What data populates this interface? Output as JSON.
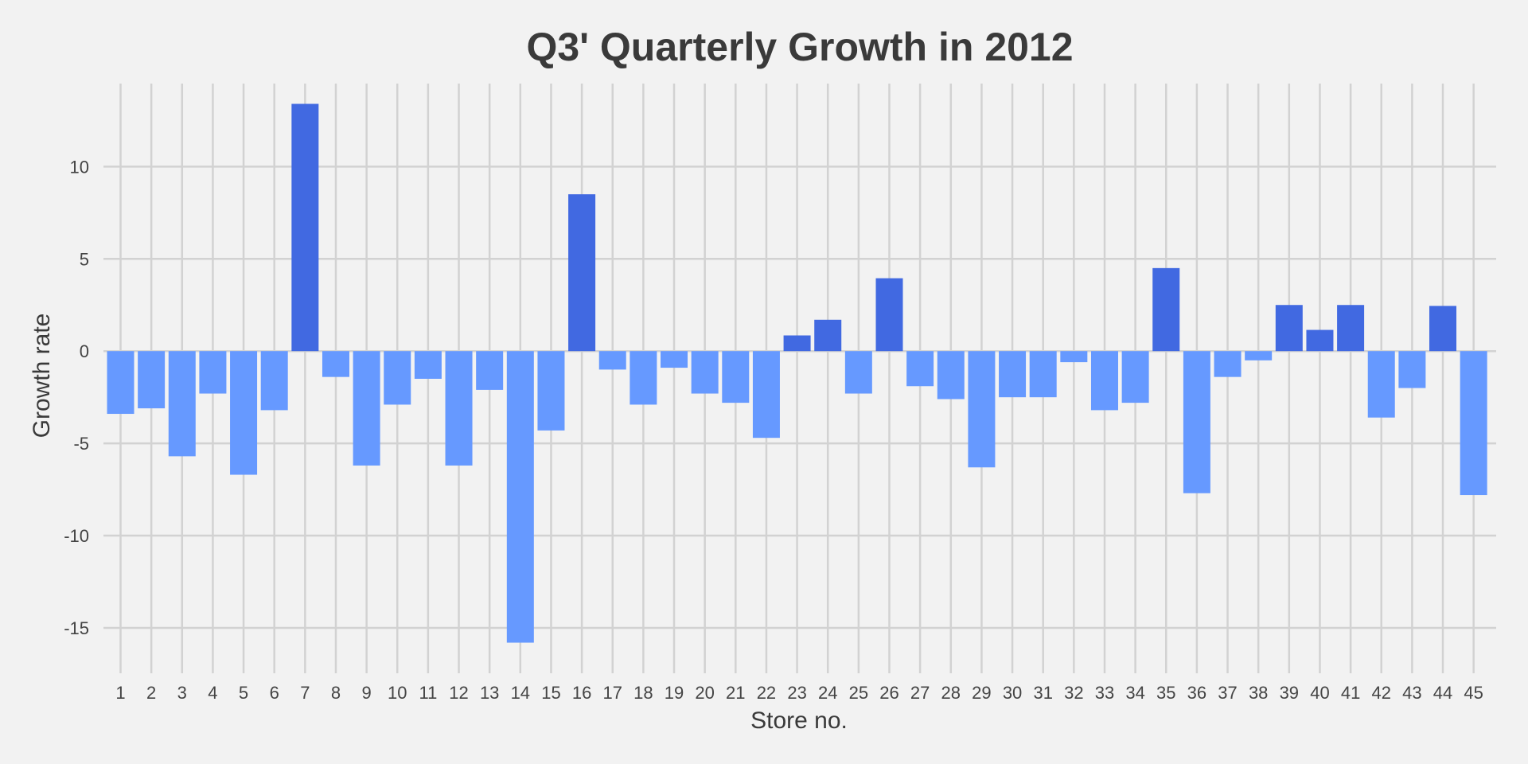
{
  "chart_data": {
    "type": "bar",
    "title": "Q3' Quarterly Growth in 2012",
    "xlabel": "Store no.",
    "ylabel": "Growth rate",
    "ylim": [
      -17.2,
      14.5
    ],
    "yticks": [
      -15,
      -10,
      -5,
      0,
      5,
      10
    ],
    "grid": true,
    "colors": {
      "positive": "#4169e1",
      "negative": "#6699ff",
      "background": "#f2f2f2",
      "grid": "#d2d2d2"
    },
    "categories": [
      "1",
      "2",
      "3",
      "4",
      "5",
      "6",
      "7",
      "8",
      "9",
      "10",
      "11",
      "12",
      "13",
      "14",
      "15",
      "16",
      "17",
      "18",
      "19",
      "20",
      "21",
      "22",
      "23",
      "24",
      "25",
      "26",
      "27",
      "28",
      "29",
      "30",
      "31",
      "32",
      "33",
      "34",
      "35",
      "36",
      "37",
      "38",
      "39",
      "40",
      "41",
      "42",
      "43",
      "44",
      "45"
    ],
    "values": [
      -3.4,
      -3.1,
      -5.7,
      -2.3,
      -6.7,
      -3.2,
      13.4,
      -1.4,
      -6.2,
      -2.9,
      -1.5,
      -6.2,
      -2.1,
      -15.8,
      -4.3,
      8.5,
      -1.0,
      -2.9,
      -0.9,
      -2.3,
      -2.8,
      -4.7,
      0.85,
      1.7,
      -2.3,
      3.95,
      -1.9,
      -2.6,
      -6.3,
      -2.5,
      -2.5,
      -0.6,
      -3.2,
      -2.8,
      4.5,
      -7.7,
      -1.4,
      -0.5,
      2.5,
      1.15,
      2.5,
      -3.6,
      -2.0,
      2.45,
      -7.8
    ]
  }
}
